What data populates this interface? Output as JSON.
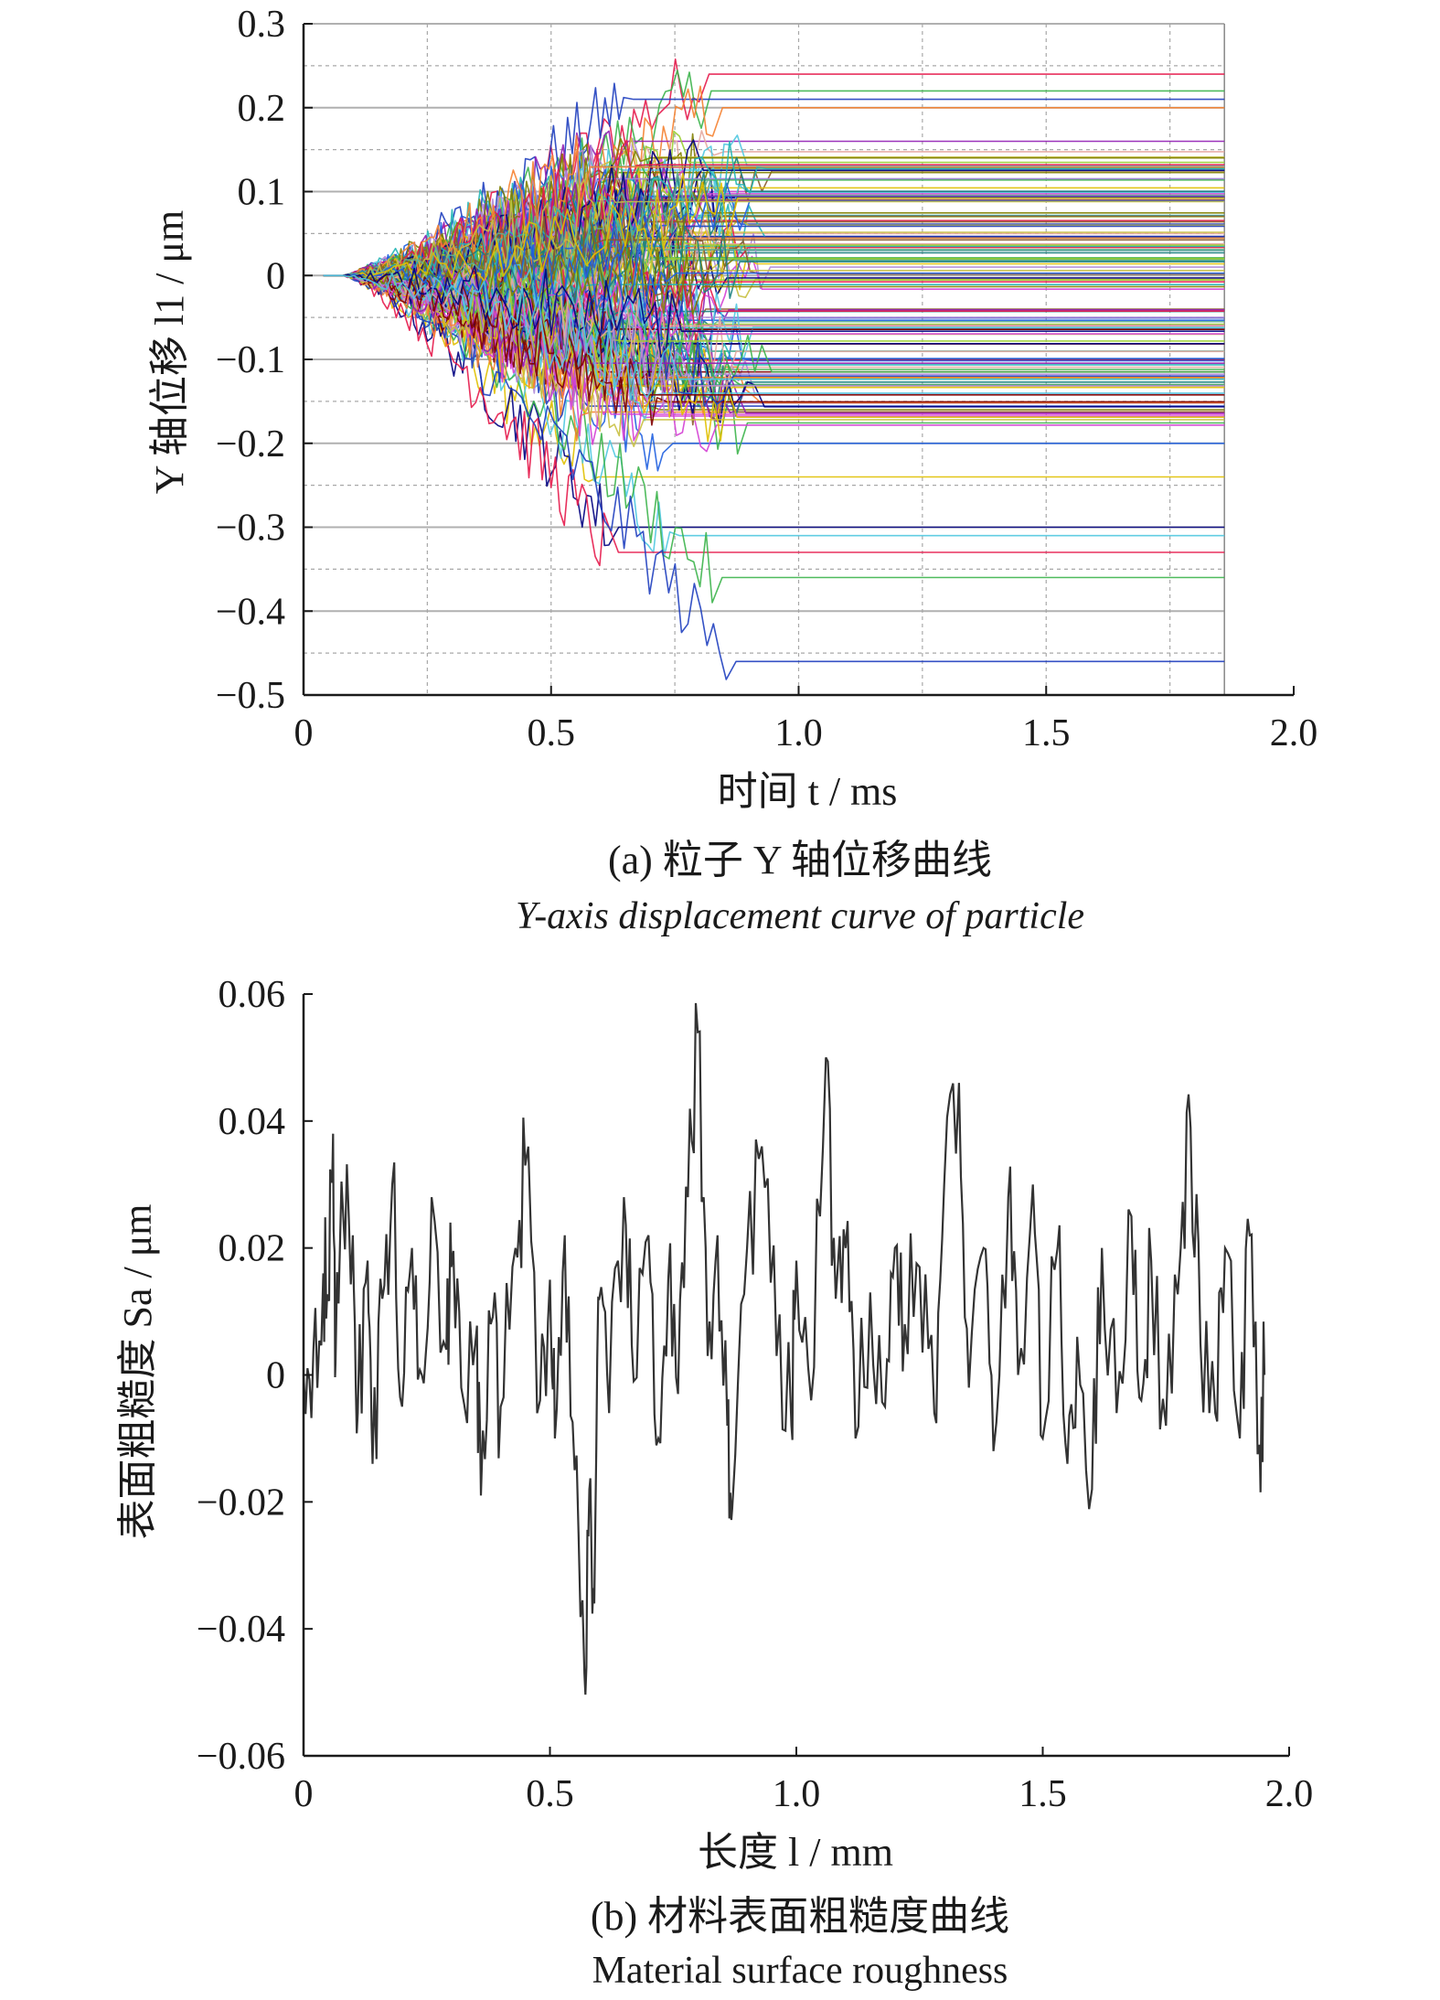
{
  "chart_data": [
    {
      "type": "line",
      "panel": "a",
      "xlabel": "时间 t / ms",
      "ylabel": "Y 轴位移 l1 / μm",
      "xlim": [
        0,
        2.0
      ],
      "ylim": [
        -0.5,
        0.3
      ],
      "x_ticks": [
        "0",
        "0.5",
        "1.0",
        "1.5",
        "2.0"
      ],
      "y_ticks": [
        "0.3",
        "0.2",
        "0.1",
        "0",
        "−0.1",
        "−0.2",
        "−0.3",
        "−0.4",
        "−0.5"
      ],
      "grid": true,
      "x_end": 1.86,
      "series_count": 160,
      "settled_range": [
        -0.46,
        0.24
      ],
      "final_values_sample": [
        0.24,
        0.22,
        0.21,
        0.2,
        0.16,
        0.13,
        0.1,
        0.07,
        0.05,
        0.03,
        0.01,
        -0.04,
        -0.07,
        -0.1,
        -0.13,
        -0.16,
        -0.2,
        -0.24,
        -0.3,
        -0.31,
        -0.33,
        -0.36,
        -0.46
      ],
      "caption_cn": "(a) 粒子 Y 轴位移曲线",
      "caption_en": "Y-axis displacement curve of particle",
      "colors": [
        "#e6194b",
        "#3cb44b",
        "#1f3fbf",
        "#f58231",
        "#911eb4",
        "#22b5b5",
        "#d43fd4",
        "#9acd32",
        "#e6a8a0",
        "#1a8080",
        "#b088d8",
        "#8b5a2b",
        "#c8c040",
        "#800000",
        "#60b090",
        "#808000",
        "#2060e0",
        "#e0c000",
        "#000080",
        "#50c8e0"
      ]
    },
    {
      "type": "line",
      "panel": "b",
      "xlabel": "长度 l / mm",
      "ylabel": "表面粗糙度 Sa / μm",
      "xlim": [
        0,
        2.0
      ],
      "ylim": [
        -0.06,
        0.06
      ],
      "x_ticks": [
        "0",
        "0.5",
        "1.0",
        "1.5",
        "2.0"
      ],
      "y_ticks": [
        "0.06",
        "0.04",
        "0.02",
        "0",
        "−0.02",
        "−0.04",
        "−0.06"
      ],
      "grid": false,
      "x_end": 1.95,
      "points": [
        [
          0,
          0
        ],
        [
          0.02,
          0.004
        ],
        [
          0.04,
          0.016
        ],
        [
          0.05,
          0.012
        ],
        [
          0.06,
          0.038
        ],
        [
          0.065,
          0.002
        ],
        [
          0.08,
          0.026
        ],
        [
          0.1,
          0.022
        ],
        [
          0.11,
          -0.006
        ],
        [
          0.13,
          0.018
        ],
        [
          0.14,
          -0.014
        ],
        [
          0.16,
          0.012
        ],
        [
          0.18,
          0.03
        ],
        [
          0.2,
          -0.005
        ],
        [
          0.22,
          0.02
        ],
        [
          0.24,
          0.0
        ],
        [
          0.26,
          0.028
        ],
        [
          0.29,
          0.004
        ],
        [
          0.3,
          0.017
        ],
        [
          0.32,
          -0.002
        ],
        [
          0.35,
          0.006
        ],
        [
          0.36,
          -0.019
        ],
        [
          0.38,
          0.008
        ],
        [
          0.4,
          -0.005
        ],
        [
          0.43,
          0.02
        ],
        [
          0.45,
          0.033
        ],
        [
          0.48,
          -0.004
        ],
        [
          0.5,
          0.015
        ],
        [
          0.51,
          -0.01
        ],
        [
          0.53,
          0.022
        ],
        [
          0.55,
          -0.015
        ],
        [
          0.57,
          -0.047
        ],
        [
          0.58,
          -0.018
        ],
        [
          0.59,
          -0.036
        ],
        [
          0.6,
          0.012
        ],
        [
          0.62,
          -0.006
        ],
        [
          0.65,
          0.028
        ],
        [
          0.67,
          -0.001
        ],
        [
          0.7,
          0.022
        ],
        [
          0.72,
          -0.01
        ],
        [
          0.74,
          0.015
        ],
        [
          0.76,
          -0.003
        ],
        [
          0.78,
          0.028
        ],
        [
          0.8,
          0.054
        ],
        [
          0.82,
          0.003
        ],
        [
          0.84,
          0.022
        ],
        [
          0.86,
          -0.008
        ],
        [
          0.87,
          -0.021
        ],
        [
          0.9,
          0.02
        ],
        [
          0.93,
          0.036
        ],
        [
          0.96,
          0.003
        ],
        [
          0.99,
          -0.008
        ],
        [
          1.0,
          0.018
        ],
        [
          1.03,
          -0.004
        ],
        [
          1.06,
          0.05
        ],
        [
          1.08,
          0.012
        ],
        [
          1.1,
          0.02
        ],
        [
          1.12,
          -0.01
        ],
        [
          1.15,
          0.013
        ],
        [
          1.18,
          -0.005
        ],
        [
          1.2,
          0.02
        ],
        [
          1.22,
          0.008
        ],
        [
          1.25,
          0.017
        ],
        [
          1.28,
          -0.006
        ],
        [
          1.3,
          0.03
        ],
        [
          1.33,
          0.046
        ],
        [
          1.35,
          -0.002
        ],
        [
          1.38,
          0.02
        ],
        [
          1.4,
          -0.012
        ],
        [
          1.43,
          0.028
        ],
        [
          1.45,
          0.0
        ],
        [
          1.48,
          0.03
        ],
        [
          1.5,
          -0.01
        ],
        [
          1.53,
          0.02
        ],
        [
          1.55,
          -0.014
        ],
        [
          1.57,
          0.006
        ],
        [
          1.6,
          -0.018
        ],
        [
          1.62,
          0.02
        ],
        [
          1.65,
          -0.006
        ],
        [
          1.68,
          0.025
        ],
        [
          1.7,
          -0.004
        ],
        [
          1.72,
          0.018
        ],
        [
          1.75,
          -0.008
        ],
        [
          1.78,
          0.02
        ],
        [
          1.8,
          0.039
        ],
        [
          1.82,
          0.005
        ],
        [
          1.85,
          -0.006
        ],
        [
          1.87,
          0.02
        ],
        [
          1.9,
          -0.01
        ],
        [
          1.92,
          0.022
        ],
        [
          1.94,
          -0.011
        ],
        [
          1.95,
          0.0
        ]
      ],
      "caption_cn": "(b) 材料表面粗糙度曲线",
      "caption_en": "Material surface roughness",
      "line_color": "#333333"
    }
  ]
}
